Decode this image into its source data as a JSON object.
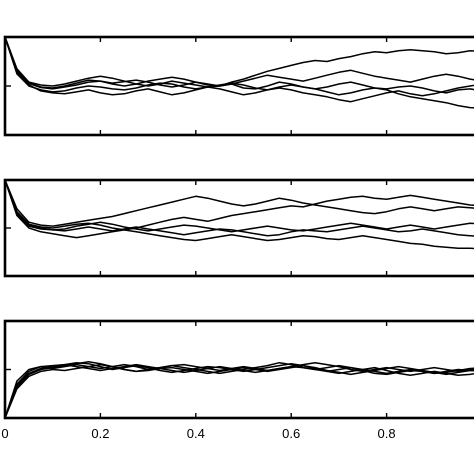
{
  "chart_data": [
    {
      "type": "line",
      "panel": "top",
      "x": [
        0,
        0.025,
        0.05,
        0.075,
        0.1,
        0.125,
        0.15,
        0.175,
        0.2,
        0.225,
        0.25,
        0.275,
        0.3,
        0.325,
        0.35,
        0.375,
        0.4,
        0.425,
        0.45,
        0.475,
        0.5,
        0.525,
        0.55,
        0.575,
        0.6,
        0.625,
        0.65,
        0.675,
        0.7,
        0.725,
        0.75,
        0.775,
        0.8,
        0.825,
        0.85,
        0.875,
        0.9,
        0.925,
        0.95,
        0.975,
        1.0
      ],
      "xlim": [
        0,
        1
      ],
      "ylim": [
        0,
        2
      ],
      "grid": false,
      "series": [
        {
          "values": [
            2.0,
            1.3,
            1.05,
            0.97,
            0.94,
            0.98,
            1.02,
            1.08,
            1.1,
            1.06,
            1.09,
            1.12,
            1.08,
            1.02,
            0.98,
            1.02,
            1.08,
            1.04,
            1.0,
            1.04,
            0.96,
            0.94,
            1.0,
            1.08,
            1.04,
            0.98,
            0.94,
            0.88,
            0.82,
            0.86,
            0.92,
            0.96,
            0.92,
            0.84,
            0.78,
            0.74,
            0.7,
            0.66,
            0.6,
            0.56,
            0.55
          ]
        },
        {
          "values": [
            2.0,
            1.25,
            1.0,
            0.92,
            0.88,
            0.9,
            0.96,
            1.0,
            0.98,
            0.94,
            0.92,
            0.96,
            1.02,
            1.06,
            1.04,
            0.98,
            0.94,
            0.98,
            1.02,
            1.06,
            1.02,
            0.96,
            0.92,
            0.98,
            1.02,
            0.98,
            0.94,
            0.98,
            1.04,
            1.08,
            1.02,
            0.96,
            0.94,
            0.98,
            1.0,
            0.96,
            0.9,
            0.86,
            0.92,
            0.94,
            0.9
          ]
        },
        {
          "values": [
            2.0,
            1.35,
            1.08,
            1.02,
            1.0,
            1.04,
            1.1,
            1.16,
            1.2,
            1.16,
            1.1,
            1.04,
            1.0,
            1.04,
            1.1,
            1.06,
            1.02,
            0.98,
            1.0,
            1.08,
            1.14,
            1.22,
            1.3,
            1.36,
            1.42,
            1.48,
            1.52,
            1.5,
            1.56,
            1.6,
            1.66,
            1.7,
            1.68,
            1.72,
            1.74,
            1.72,
            1.7,
            1.66,
            1.68,
            1.72,
            1.7
          ]
        },
        {
          "values": [
            2.0,
            1.28,
            1.02,
            0.9,
            0.86,
            0.84,
            0.88,
            0.92,
            0.86,
            0.82,
            0.84,
            0.9,
            0.94,
            0.88,
            0.82,
            0.86,
            0.92,
            0.98,
            0.94,
            0.88,
            0.82,
            0.86,
            0.92,
            0.96,
            0.92,
            0.86,
            0.82,
            0.78,
            0.72,
            0.68,
            0.74,
            0.8,
            0.86,
            0.9,
            0.84,
            0.8,
            0.84,
            0.9,
            0.96,
            1.0,
            1.04
          ]
        },
        {
          "values": [
            2.0,
            1.32,
            1.06,
            0.98,
            0.96,
            1.0,
            1.06,
            1.12,
            1.1,
            1.04,
            1.0,
            1.04,
            1.1,
            1.14,
            1.18,
            1.14,
            1.08,
            1.02,
            1.0,
            1.04,
            1.1,
            1.16,
            1.22,
            1.18,
            1.14,
            1.1,
            1.16,
            1.22,
            1.28,
            1.32,
            1.26,
            1.2,
            1.16,
            1.12,
            1.08,
            1.14,
            1.2,
            1.24,
            1.2,
            1.14,
            1.1
          ]
        }
      ]
    },
    {
      "type": "line",
      "panel": "middle",
      "x": [
        0,
        0.025,
        0.05,
        0.075,
        0.1,
        0.125,
        0.15,
        0.175,
        0.2,
        0.225,
        0.25,
        0.275,
        0.3,
        0.325,
        0.35,
        0.375,
        0.4,
        0.425,
        0.45,
        0.475,
        0.5,
        0.525,
        0.55,
        0.575,
        0.6,
        0.625,
        0.65,
        0.675,
        0.7,
        0.725,
        0.75,
        0.775,
        0.8,
        0.825,
        0.85,
        0.875,
        0.9,
        0.925,
        0.95,
        0.975,
        1.0
      ],
      "xlim": [
        0,
        1
      ],
      "ylim": [
        0,
        2
      ],
      "grid": false,
      "series": [
        {
          "values": [
            2.0,
            1.4,
            1.12,
            1.06,
            1.04,
            1.08,
            1.12,
            1.16,
            1.2,
            1.24,
            1.3,
            1.36,
            1.42,
            1.48,
            1.54,
            1.6,
            1.66,
            1.62,
            1.56,
            1.5,
            1.46,
            1.5,
            1.56,
            1.62,
            1.58,
            1.52,
            1.48,
            1.44,
            1.4,
            1.36,
            1.32,
            1.3,
            1.34,
            1.4,
            1.44,
            1.4,
            1.36,
            1.4,
            1.44,
            1.42,
            1.4
          ]
        },
        {
          "values": [
            2.0,
            1.34,
            1.08,
            1.02,
            1.0,
            1.04,
            1.08,
            1.1,
            1.06,
            1.0,
            0.96,
            1.0,
            1.06,
            1.12,
            1.18,
            1.22,
            1.18,
            1.14,
            1.2,
            1.26,
            1.3,
            1.34,
            1.38,
            1.42,
            1.46,
            1.44,
            1.5,
            1.56,
            1.6,
            1.64,
            1.66,
            1.62,
            1.6,
            1.64,
            1.68,
            1.64,
            1.6,
            1.56,
            1.52,
            1.48,
            1.46
          ]
        },
        {
          "values": [
            2.0,
            1.3,
            1.04,
            0.98,
            0.96,
            0.94,
            0.98,
            1.02,
            0.98,
            0.94,
            0.98,
            1.02,
            0.98,
            0.94,
            0.9,
            0.86,
            0.9,
            0.94,
            0.98,
            0.96,
            0.92,
            0.88,
            0.84,
            0.86,
            0.92,
            0.96,
            0.94,
            0.92,
            0.96,
            1.0,
            1.04,
            1.0,
            0.96,
            0.92,
            0.94,
            0.98,
            0.94,
            0.9,
            0.86,
            0.84,
            0.82
          ]
        },
        {
          "values": [
            2.0,
            1.26,
            1.0,
            0.92,
            0.88,
            0.84,
            0.8,
            0.84,
            0.88,
            0.92,
            0.96,
            0.92,
            0.88,
            0.84,
            0.8,
            0.76,
            0.74,
            0.78,
            0.82,
            0.86,
            0.82,
            0.78,
            0.74,
            0.76,
            0.8,
            0.84,
            0.82,
            0.78,
            0.76,
            0.8,
            0.84,
            0.8,
            0.76,
            0.72,
            0.68,
            0.66,
            0.62,
            0.6,
            0.58,
            0.58,
            0.56
          ]
        },
        {
          "values": [
            2.0,
            1.32,
            1.06,
            1.0,
            0.96,
            0.98,
            1.04,
            1.08,
            1.12,
            1.08,
            1.02,
            0.98,
            0.94,
            0.98,
            1.02,
            1.06,
            1.04,
            1.0,
            0.96,
            0.92,
            0.96,
            1.0,
            1.04,
            1.0,
            0.96,
            0.94,
            0.98,
            1.02,
            1.06,
            1.1,
            1.06,
            1.02,
            0.98,
            1.02,
            1.06,
            1.02,
            0.98,
            1.02,
            1.06,
            1.1,
            1.08
          ]
        }
      ]
    },
    {
      "type": "line",
      "panel": "bottom",
      "x": [
        0,
        0.025,
        0.05,
        0.075,
        0.1,
        0.125,
        0.15,
        0.175,
        0.2,
        0.225,
        0.25,
        0.275,
        0.3,
        0.325,
        0.35,
        0.375,
        0.4,
        0.425,
        0.45,
        0.475,
        0.5,
        0.525,
        0.55,
        0.575,
        0.6,
        0.625,
        0.65,
        0.675,
        0.7,
        0.725,
        0.75,
        0.775,
        0.8,
        0.825,
        0.85,
        0.875,
        0.9,
        0.925,
        0.95,
        0.975,
        1.0
      ],
      "xlim": [
        0,
        1
      ],
      "ylim": [
        0,
        2
      ],
      "grid": false,
      "xticks": [
        "0",
        "0.2",
        "0.4",
        "0.6",
        "0.8"
      ],
      "series": [
        {
          "values": [
            0.0,
            0.7,
            0.96,
            1.06,
            1.08,
            1.1,
            1.14,
            1.12,
            1.06,
            1.0,
            1.04,
            1.08,
            1.04,
            0.98,
            0.94,
            0.98,
            1.02,
            1.06,
            1.04,
            1.0,
            0.96,
            1.0,
            1.04,
            1.08,
            1.12,
            1.08,
            1.02,
            0.96,
            0.92,
            0.96,
            1.0,
            1.04,
            0.98,
            0.92,
            0.88,
            0.92,
            0.96,
            0.92,
            0.88,
            0.9,
            0.94
          ]
        },
        {
          "values": [
            0.0,
            0.64,
            0.9,
            1.0,
            1.04,
            1.08,
            1.12,
            1.16,
            1.12,
            1.06,
            1.0,
            0.96,
            1.0,
            1.04,
            1.08,
            1.04,
            1.0,
            0.96,
            0.92,
            0.96,
            1.0,
            1.04,
            1.08,
            1.14,
            1.1,
            1.04,
            1.0,
            0.96,
            1.0,
            1.04,
            0.98,
            0.92,
            0.9,
            0.94,
            0.98,
            0.96,
            0.92,
            0.96,
            1.0,
            0.98,
            0.96
          ]
        },
        {
          "values": [
            0.0,
            0.76,
            1.0,
            1.06,
            1.02,
            1.06,
            1.1,
            1.06,
            1.02,
            1.06,
            1.1,
            1.06,
            1.0,
            1.04,
            1.08,
            1.1,
            1.06,
            1.02,
            0.98,
            1.02,
            1.06,
            1.02,
            0.98,
            1.02,
            1.06,
            1.1,
            1.14,
            1.1,
            1.06,
            1.0,
            0.96,
            1.0,
            1.04,
            1.0,
            0.96,
            1.0,
            1.04,
            1.0,
            0.96,
            1.0,
            1.02
          ]
        },
        {
          "values": [
            0.0,
            0.6,
            0.86,
            0.96,
            1.0,
            0.98,
            1.02,
            1.06,
            1.1,
            1.06,
            1.0,
            0.96,
            0.98,
            1.02,
            1.04,
            1.0,
            0.96,
            0.92,
            0.96,
            1.0,
            1.04,
            1.0,
            0.96,
            1.0,
            1.04,
            1.08,
            1.04,
            0.98,
            0.94,
            0.9,
            0.94,
            0.98,
            1.02,
            1.06,
            1.02,
            0.98,
            0.94,
            0.9,
            0.94,
            0.98,
            1.0
          ]
        },
        {
          "values": [
            0.0,
            0.68,
            0.92,
            1.02,
            1.06,
            1.1,
            1.06,
            1.02,
            0.98,
            1.02,
            1.06,
            1.1,
            1.06,
            1.02,
            0.98,
            0.94,
            0.98,
            1.02,
            1.06,
            1.02,
            0.98,
            0.94,
            0.98,
            1.02,
            1.06,
            1.04,
            1.0,
            1.04,
            1.08,
            1.04,
            1.0,
            0.96,
            0.92,
            0.96,
            1.0,
            0.96,
            0.92,
            0.94,
            0.98,
            1.02,
            1.04
          ]
        }
      ]
    }
  ]
}
